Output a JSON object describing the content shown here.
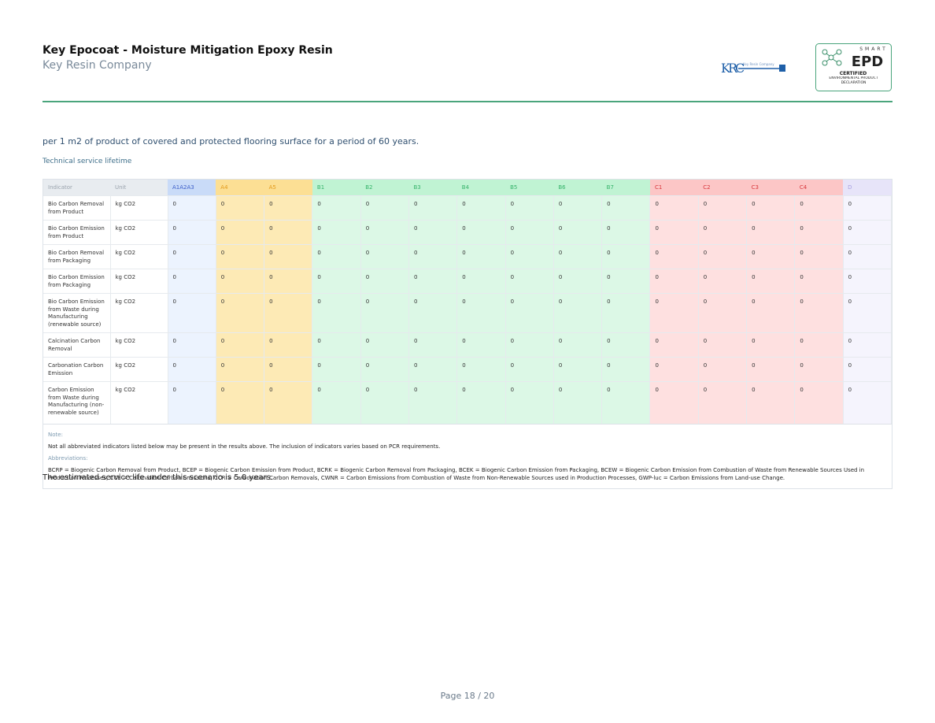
{
  "header": {
    "title": "Key Epocoat - Moisture Mitigation Epoxy Resin",
    "company": "Key Resin Company"
  },
  "logos": {
    "krc_mark": "KRC",
    "krc_tagline": "Key Resin Company",
    "smart": "SMART",
    "epd": "EPD",
    "certified": "CERTIFIED",
    "declaration": "ENVIRONMENTAL PRODUCT DECLARATION"
  },
  "intro": "per 1 m2 of product of covered and protected flooring surface for a period of 60 years.",
  "section_label": "Technical service lifetime",
  "table": {
    "columns": [
      "Indicator",
      "Unit",
      "A1A2A3",
      "A4",
      "A5",
      "B1",
      "B2",
      "B3",
      "B4",
      "B5",
      "B6",
      "B7",
      "C1",
      "C2",
      "C3",
      "C4",
      "D"
    ],
    "rows": [
      [
        "Bio Carbon Removal from Product",
        "kg CO2",
        0,
        0,
        0,
        0,
        0,
        0,
        0,
        0,
        0,
        0,
        0,
        0,
        0,
        0,
        0
      ],
      [
        "Bio Carbon Emission from Product",
        "kg CO2",
        0,
        0,
        0,
        0,
        0,
        0,
        0,
        0,
        0,
        0,
        0,
        0,
        0,
        0,
        0
      ],
      [
        "Bio Carbon Removal from Packaging",
        "kg CO2",
        0,
        0,
        0,
        0,
        0,
        0,
        0,
        0,
        0,
        0,
        0,
        0,
        0,
        0,
        0
      ],
      [
        "Bio Carbon Emission from Packaging",
        "kg CO2",
        0,
        0,
        0,
        0,
        0,
        0,
        0,
        0,
        0,
        0,
        0,
        0,
        0,
        0,
        0
      ],
      [
        "Bio Carbon Emission from Waste during Manufacturing (renewable source)",
        "kg CO2",
        0,
        0,
        0,
        0,
        0,
        0,
        0,
        0,
        0,
        0,
        0,
        0,
        0,
        0,
        0
      ],
      [
        "Calcination Carbon Removal",
        "kg CO2",
        0,
        0,
        0,
        0,
        0,
        0,
        0,
        0,
        0,
        0,
        0,
        0,
        0,
        0,
        0
      ],
      [
        "Carbonation Carbon Emission",
        "kg CO2",
        0,
        0,
        0,
        0,
        0,
        0,
        0,
        0,
        0,
        0,
        0,
        0,
        0,
        0,
        0
      ],
      [
        "Carbon Emission from Waste during Manufacturing (non-renewable source)",
        "kg CO2",
        0,
        0,
        0,
        0,
        0,
        0,
        0,
        0,
        0,
        0,
        0,
        0,
        0,
        0,
        0
      ]
    ]
  },
  "notes": {
    "note_label": "Note:",
    "note": "Not all abbreviated indicators listed below may be present in the results above. The inclusion of indicators varies based on PCR requirements.",
    "abbreviations_label": "Abbreviations:",
    "abbreviations": "BCRP = Biogenic Carbon Removal from Product, BCEP = Biogenic Carbon Emission from Product, BCRK = Biogenic Carbon Removal from Packaging, BCEK = Biogenic Carbon Emission from Packaging, BCEW = Biogenic Carbon Emission from Combustion of Waste from Renewable Sources Used in Production Processes, CCE = Calcination Carbon Emissions, CCR = Carbonation Carbon Removals, CWNR = Carbon Emissions from Combustion of Waste from Non-Renewable Sources used in Production Processes, GWP-luc = Carbon Emissions from Land-use Change."
  },
  "service_life": "The estimated service life under this scenario is 5.0 years.",
  "footer": {
    "page": "Page 18 / 20"
  }
}
